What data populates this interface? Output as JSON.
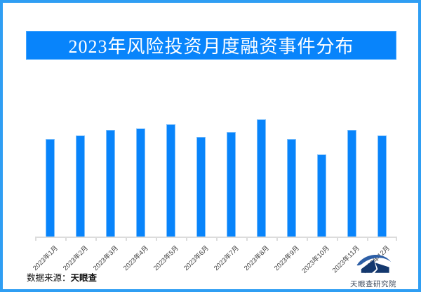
{
  "title": {
    "text": "2023年风险投资月度融资事件分布",
    "banner_bg": "#0884fb",
    "text_color": "#ffffff"
  },
  "chart_data": {
    "type": "bar",
    "title": "2023年风险投资月度融资事件分布",
    "categories": [
      "2023年1月",
      "2023年2月",
      "2023年3月",
      "2023年4月",
      "2023年5月",
      "2023年6月",
      "2023年7月",
      "2023年8月",
      "2023年9月",
      "2023年10月",
      "2023年11月",
      "2023年12月"
    ],
    "values": [
      83,
      86,
      91,
      92,
      96,
      85,
      89,
      100,
      83,
      70,
      91,
      86
    ],
    "values_note": "no numeric axis or data labels are shown in the image; values are relative bar heights with the tallest bar (2023年8月) = 100",
    "xlabel": "",
    "ylabel": "",
    "ylim": [
      0,
      105
    ],
    "grid": false,
    "legend": false,
    "bar_color": "#0884fb",
    "bar_edge_color": "#7fc0fb",
    "axis_line_color": "#dcdcdc",
    "tick_label_color": "#3d3d3d"
  },
  "footer": {
    "source_label": "数据来源：",
    "source_value": "天眼查"
  },
  "brand": {
    "name": "天眼查研究院",
    "logo_swoosh_color": "#2d5fa6",
    "logo_body_color": "#14386e",
    "text_color": "#3d4a5c"
  },
  "frame": {
    "border_color": "#2f9ef3",
    "background": "#ffffff"
  }
}
